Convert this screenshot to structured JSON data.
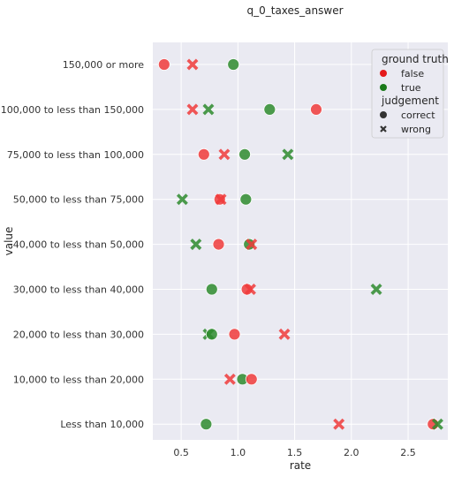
{
  "chart_data": {
    "type": "scatter",
    "title": "q_0_taxes_answer",
    "xlabel": "rate",
    "ylabel": "value",
    "xlim": [
      0.25,
      2.85
    ],
    "xticks": [
      0.5,
      1.0,
      1.5,
      2.0,
      2.5
    ],
    "xtick_labels": [
      "0.5",
      "1.0",
      "1.5",
      "2.0",
      "2.5"
    ],
    "categories": [
      "150,000 or more",
      "100,000 to less than 150,000",
      "75,000 to less than 100,000",
      "50,000 to less than 75,000",
      "40,000 to less than 50,000",
      "30,000 to less than 40,000",
      "20,000 to less than 30,000",
      "10,000 to less than 20,000",
      "Less than 10,000"
    ],
    "grid": true,
    "legend": {
      "placement": "top-right",
      "hue_title": "ground truth",
      "hue_entries": [
        {
          "label": "false",
          "color": "#e41a1c"
        },
        {
          "label": "true",
          "color": "#1a7a1a"
        }
      ],
      "style_title": "judgement",
      "style_entries": [
        {
          "label": "correct",
          "marker": "circle"
        },
        {
          "label": "wrong",
          "marker": "x"
        }
      ]
    },
    "colors": {
      "false": "#f03b3b",
      "true": "#2e8b2e",
      "background": "#eaeaf2",
      "grid": "#ffffff"
    },
    "points": [
      {
        "category": "150,000 or more",
        "x": 0.35,
        "truth": "false",
        "judgement": "correct"
      },
      {
        "category": "150,000 or more",
        "x": 0.6,
        "truth": "false",
        "judgement": "wrong"
      },
      {
        "category": "150,000 or more",
        "x": 0.96,
        "truth": "true",
        "judgement": "correct"
      },
      {
        "category": "100,000 to less than 150,000",
        "x": 0.6,
        "truth": "false",
        "judgement": "wrong"
      },
      {
        "category": "100,000 to less than 150,000",
        "x": 0.74,
        "truth": "true",
        "judgement": "wrong"
      },
      {
        "category": "100,000 to less than 150,000",
        "x": 1.28,
        "truth": "true",
        "judgement": "correct"
      },
      {
        "category": "100,000 to less than 150,000",
        "x": 1.69,
        "truth": "false",
        "judgement": "correct"
      },
      {
        "category": "75,000 to less than 100,000",
        "x": 0.7,
        "truth": "false",
        "judgement": "correct"
      },
      {
        "category": "75,000 to less than 100,000",
        "x": 0.88,
        "truth": "false",
        "judgement": "wrong"
      },
      {
        "category": "75,000 to less than 100,000",
        "x": 1.06,
        "truth": "true",
        "judgement": "correct"
      },
      {
        "category": "75,000 to less than 100,000",
        "x": 1.44,
        "truth": "true",
        "judgement": "wrong"
      },
      {
        "category": "50,000 to less than 75,000",
        "x": 0.51,
        "truth": "true",
        "judgement": "wrong"
      },
      {
        "category": "50,000 to less than 75,000",
        "x": 0.84,
        "truth": "false",
        "judgement": "correct"
      },
      {
        "category": "50,000 to less than 75,000",
        "x": 0.85,
        "truth": "false",
        "judgement": "wrong"
      },
      {
        "category": "50,000 to less than 75,000",
        "x": 1.07,
        "truth": "true",
        "judgement": "correct"
      },
      {
        "category": "40,000 to less than 50,000",
        "x": 0.63,
        "truth": "true",
        "judgement": "wrong"
      },
      {
        "category": "40,000 to less than 50,000",
        "x": 0.83,
        "truth": "false",
        "judgement": "correct"
      },
      {
        "category": "40,000 to less than 50,000",
        "x": 1.1,
        "truth": "true",
        "judgement": "correct"
      },
      {
        "category": "40,000 to less than 50,000",
        "x": 1.12,
        "truth": "false",
        "judgement": "wrong"
      },
      {
        "category": "30,000 to less than 40,000",
        "x": 0.77,
        "truth": "true",
        "judgement": "correct"
      },
      {
        "category": "30,000 to less than 40,000",
        "x": 1.08,
        "truth": "false",
        "judgement": "correct"
      },
      {
        "category": "30,000 to less than 40,000",
        "x": 1.11,
        "truth": "false",
        "judgement": "wrong"
      },
      {
        "category": "30,000 to less than 40,000",
        "x": 2.22,
        "truth": "true",
        "judgement": "wrong"
      },
      {
        "category": "20,000 to less than 30,000",
        "x": 0.74,
        "truth": "true",
        "judgement": "wrong"
      },
      {
        "category": "20,000 to less than 30,000",
        "x": 0.77,
        "truth": "true",
        "judgement": "correct"
      },
      {
        "category": "20,000 to less than 30,000",
        "x": 0.97,
        "truth": "false",
        "judgement": "correct"
      },
      {
        "category": "20,000 to less than 30,000",
        "x": 1.41,
        "truth": "false",
        "judgement": "wrong"
      },
      {
        "category": "10,000 to less than 20,000",
        "x": 0.93,
        "truth": "false",
        "judgement": "wrong"
      },
      {
        "category": "10,000 to less than 20,000",
        "x": 1.04,
        "truth": "true",
        "judgement": "correct"
      },
      {
        "category": "10,000 to less than 20,000",
        "x": 1.12,
        "truth": "false",
        "judgement": "correct"
      },
      {
        "category": "Less than 10,000",
        "x": 0.72,
        "truth": "true",
        "judgement": "correct"
      },
      {
        "category": "Less than 10,000",
        "x": 1.89,
        "truth": "false",
        "judgement": "wrong"
      },
      {
        "category": "Less than 10,000",
        "x": 2.72,
        "truth": "false",
        "judgement": "correct"
      },
      {
        "category": "Less than 10,000",
        "x": 2.76,
        "truth": "true",
        "judgement": "wrong"
      }
    ]
  }
}
